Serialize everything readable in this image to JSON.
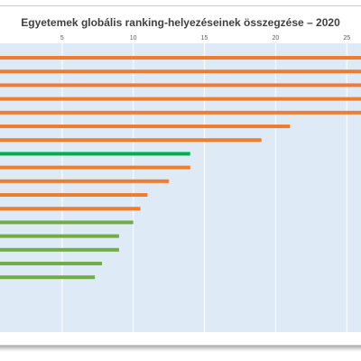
{
  "chart_data": {
    "type": "bar",
    "orientation": "horizontal",
    "title": "Egyetemek globális ranking-helyezéseinek összegzése – 2020",
    "xlabel": "",
    "ylabel": "",
    "xlim": [
      0,
      26
    ],
    "tick_values": [
      5,
      10,
      15,
      20,
      25
    ],
    "tick_labels": [
      "5",
      "10",
      "15",
      "20",
      "25"
    ],
    "grid": true,
    "legend": "none",
    "colors": {
      "orange": "#ED7D31",
      "green_dark": "#00B050",
      "green_light": "#70AD47",
      "plot_bg": "#DEEAF6",
      "grid": "#FFFFFF"
    },
    "values": [
      26,
      26,
      26,
      26,
      26,
      21,
      19,
      14,
      14,
      12.5,
      11,
      10.5,
      10,
      9,
      9,
      7.8,
      7.3
    ],
    "bar_colors": [
      "orange",
      "orange",
      "orange",
      "orange",
      "orange",
      "orange",
      "orange",
      "green_dark",
      "orange",
      "orange",
      "orange",
      "orange",
      "green_light",
      "green_light",
      "green_light",
      "green_light",
      "green_light"
    ]
  }
}
